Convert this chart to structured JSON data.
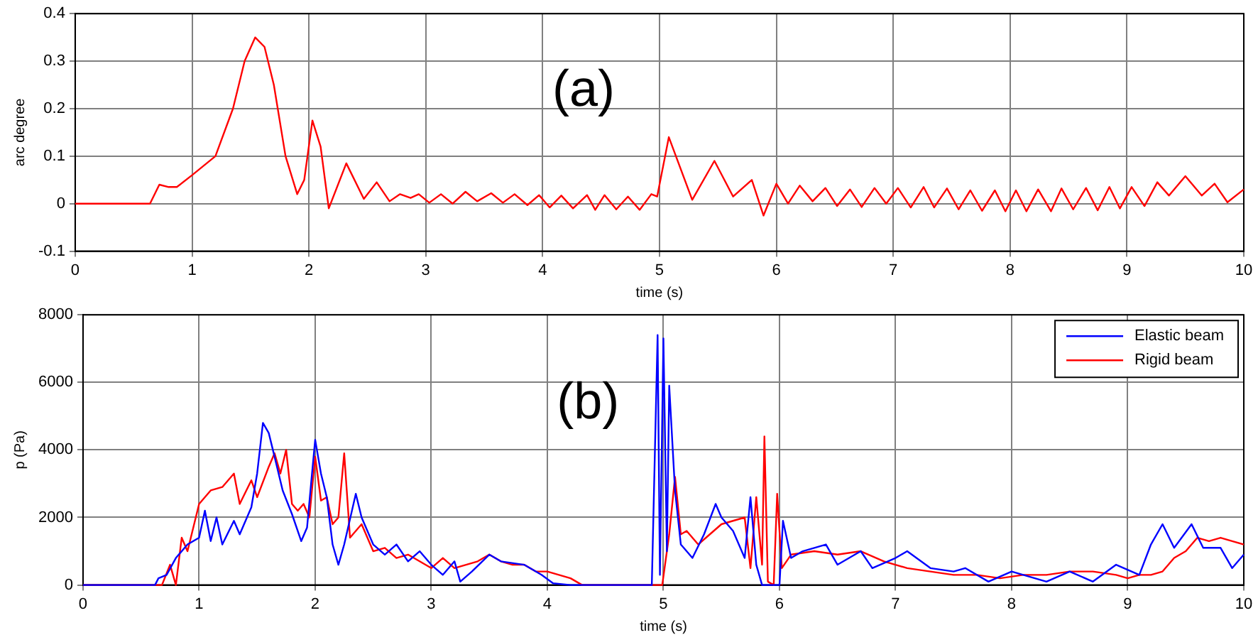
{
  "chart_data": [
    {
      "type": "line",
      "xlabel": "time (s)",
      "ylabel": "arc degree",
      "annotations": [
        "(a)"
      ],
      "xlim": [
        0,
        10
      ],
      "xticks": [
        0,
        1,
        2,
        3,
        4,
        5,
        6,
        7,
        8,
        9,
        10
      ],
      "ylim": [
        -0.1,
        0.4
      ],
      "yticks": [
        -0.1,
        0,
        0.1,
        0.2,
        0.3,
        0.4
      ],
      "grid": true,
      "legend": false,
      "marker": "none",
      "line_style": "solid",
      "series": [
        {
          "color": "#ff0000",
          "x": [
            0,
            0.64,
            0.72,
            0.8,
            0.87,
            1.0,
            1.2,
            1.35,
            1.45,
            1.54,
            1.62,
            1.7,
            1.8,
            1.9,
            1.96,
            2.03,
            2.1,
            2.17,
            2.32,
            2.47,
            2.58,
            2.69,
            2.78,
            2.87,
            2.94,
            3.03,
            3.13,
            3.23,
            3.34,
            3.44,
            3.56,
            3.66,
            3.76,
            3.87,
            3.97,
            4.06,
            4.16,
            4.26,
            4.38,
            4.45,
            4.53,
            4.63,
            4.73,
            4.83,
            4.93,
            4.98,
            5.08,
            5.28,
            5.47,
            5.63,
            5.79,
            5.89,
            6.0,
            6.1,
            6.2,
            6.31,
            6.42,
            6.52,
            6.63,
            6.73,
            6.84,
            6.94,
            7.04,
            7.15,
            7.26,
            7.35,
            7.46,
            7.56,
            7.66,
            7.76,
            7.87,
            7.96,
            8.05,
            8.14,
            8.24,
            8.35,
            8.44,
            8.54,
            8.65,
            8.75,
            8.85,
            8.94,
            9.04,
            9.15,
            9.26,
            9.36,
            9.5,
            9.64,
            9.75,
            9.86,
            10.0
          ],
          "values": [
            0,
            0,
            0.04,
            0.035,
            0.035,
            0.06,
            0.1,
            0.2,
            0.3,
            0.35,
            0.33,
            0.25,
            0.1,
            0.02,
            0.05,
            0.175,
            0.12,
            -0.01,
            0.085,
            0.01,
            0.045,
            0.005,
            0.02,
            0.012,
            0.02,
            0.002,
            0.02,
            0.0,
            0.025,
            0.005,
            0.022,
            0.002,
            0.02,
            -0.003,
            0.018,
            -0.008,
            0.017,
            -0.01,
            0.018,
            -0.013,
            0.018,
            -0.012,
            0.015,
            -0.013,
            0.02,
            0.015,
            0.14,
            0.008,
            0.09,
            0.015,
            0.05,
            -0.025,
            0.042,
            0.0,
            0.038,
            0.005,
            0.033,
            -0.005,
            0.03,
            -0.007,
            0.033,
            0.0,
            0.033,
            -0.008,
            0.035,
            -0.008,
            0.032,
            -0.012,
            0.028,
            -0.015,
            0.028,
            -0.016,
            0.028,
            -0.016,
            0.03,
            -0.016,
            0.032,
            -0.012,
            0.033,
            -0.014,
            0.035,
            -0.01,
            0.035,
            -0.005,
            0.045,
            0.017,
            0.058,
            0.017,
            0.042,
            0.003,
            0.03
          ]
        }
      ]
    },
    {
      "type": "line",
      "xlabel": "time (s)",
      "ylabel": "p (Pa)",
      "annotations": [
        "(b)"
      ],
      "xlim": [
        0,
        10
      ],
      "xticks": [
        0,
        1,
        2,
        3,
        4,
        5,
        6,
        7,
        8,
        9,
        10
      ],
      "ylim": [
        0,
        8000
      ],
      "yticks": [
        0,
        2000,
        4000,
        6000,
        8000
      ],
      "grid": true,
      "legend": "top right",
      "marker": "none",
      "line_style": "solid",
      "series": [
        {
          "name": "Elastic beam",
          "color": "#0000ff",
          "x": [
            0,
            0.62,
            0.65,
            0.72,
            0.8,
            0.9,
            1.0,
            1.05,
            1.1,
            1.15,
            1.2,
            1.3,
            1.35,
            1.45,
            1.5,
            1.55,
            1.6,
            1.65,
            1.72,
            1.8,
            1.88,
            1.93,
            1.97,
            2.0,
            2.05,
            2.1,
            2.15,
            2.2,
            2.25,
            2.35,
            2.4,
            2.5,
            2.6,
            2.7,
            2.8,
            2.9,
            3.0,
            3.1,
            3.2,
            3.25,
            3.35,
            3.5,
            3.6,
            3.8,
            3.95,
            4.05,
            4.2,
            4.9,
            4.95,
            4.97,
            5.0,
            5.03,
            5.05,
            5.1,
            5.15,
            5.25,
            5.35,
            5.45,
            5.5,
            5.6,
            5.7,
            5.75,
            5.8,
            5.85,
            6.0,
            6.03,
            6.1,
            6.2,
            6.4,
            6.5,
            6.7,
            6.8,
            7.0,
            7.1,
            7.3,
            7.5,
            7.6,
            7.8,
            8.0,
            8.1,
            8.3,
            8.5,
            8.7,
            8.9,
            9.1,
            9.2,
            9.3,
            9.4,
            9.55,
            9.65,
            9.8,
            9.9,
            10
          ],
          "values": [
            0,
            0,
            200,
            300,
            800,
            1200,
            1400,
            2200,
            1300,
            2000,
            1200,
            1900,
            1500,
            2300,
            3300,
            4800,
            4500,
            3800,
            2800,
            2100,
            1300,
            1700,
            3200,
            4300,
            3300,
            2600,
            1200,
            600,
            1200,
            2700,
            2000,
            1200,
            900,
            1200,
            700,
            1000,
            600,
            300,
            700,
            100,
            400,
            900,
            700,
            600,
            300,
            50,
            0,
            0,
            7400,
            300,
            7300,
            1000,
            5900,
            2800,
            1200,
            800,
            1500,
            2400,
            2000,
            1600,
            800,
            2600,
            600,
            0,
            0,
            1900,
            800,
            1000,
            1200,
            600,
            1000,
            500,
            800,
            1000,
            500,
            400,
            500,
            100,
            400,
            300,
            100,
            400,
            100,
            600,
            300,
            1200,
            1800,
            1100,
            1800,
            1100,
            1100,
            500,
            900
          ]
        },
        {
          "name": "Rigid beam",
          "color": "#ff0000",
          "x": [
            0,
            0.68,
            0.75,
            0.8,
            0.85,
            0.9,
            1.0,
            1.1,
            1.2,
            1.3,
            1.35,
            1.45,
            1.5,
            1.6,
            1.65,
            1.7,
            1.75,
            1.8,
            1.85,
            1.9,
            1.95,
            2.0,
            2.05,
            2.1,
            2.15,
            2.2,
            2.25,
            2.3,
            2.4,
            2.5,
            2.6,
            2.7,
            2.8,
            2.9,
            3.0,
            3.1,
            3.2,
            3.3,
            3.4,
            3.5,
            3.6,
            3.7,
            3.8,
            3.9,
            4.0,
            4.1,
            4.2,
            4.3,
            4.99,
            5.05,
            5.1,
            5.15,
            5.2,
            5.3,
            5.4,
            5.5,
            5.6,
            5.7,
            5.75,
            5.8,
            5.85,
            5.87,
            5.9,
            5.95,
            5.98,
            6.02,
            6.1,
            6.3,
            6.5,
            6.7,
            6.9,
            7.1,
            7.3,
            7.5,
            7.7,
            7.9,
            8.1,
            8.3,
            8.5,
            8.7,
            8.9,
            9.0,
            9.1,
            9.2,
            9.3,
            9.4,
            9.5,
            9.6,
            9.7,
            9.8,
            9.9,
            10
          ],
          "values": [
            0,
            0,
            600,
            0,
            1400,
            1000,
            2400,
            2800,
            2900,
            3300,
            2400,
            3100,
            2600,
            3500,
            3900,
            3300,
            4000,
            2400,
            2200,
            2400,
            2000,
            3800,
            2500,
            2600,
            1800,
            2000,
            3900,
            1400,
            1800,
            1000,
            1100,
            800,
            900,
            700,
            500,
            800,
            500,
            600,
            700,
            900,
            700,
            600,
            600,
            400,
            400,
            300,
            200,
            0,
            0,
            1500,
            3200,
            1500,
            1600,
            1200,
            1500,
            1800,
            1900,
            2000,
            500,
            2600,
            600,
            4400,
            100,
            0,
            2700,
            500,
            900,
            1000,
            900,
            1000,
            700,
            500,
            400,
            300,
            300,
            200,
            300,
            300,
            400,
            400,
            300,
            200,
            300,
            300,
            400,
            800,
            1000,
            1400,
            1300,
            1400,
            1300,
            1200
          ]
        }
      ]
    }
  ]
}
